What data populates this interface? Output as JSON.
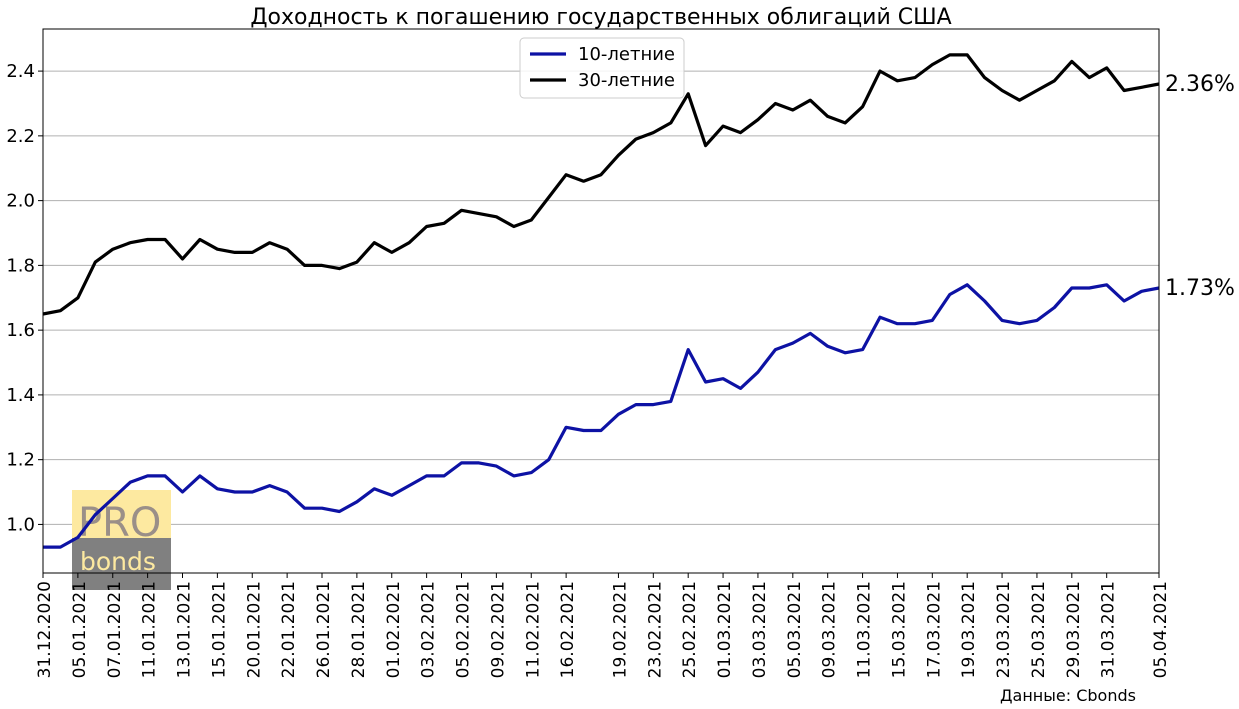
{
  "chart_data": {
    "type": "line",
    "title": "Доходность к погашению государственных облигаций США",
    "xlabel": "",
    "ylabel": "",
    "ylim": [
      0.85,
      2.53
    ],
    "yticks": [
      "1.0",
      "1.2",
      "1.4",
      "1.6",
      "1.8",
      "2.0",
      "2.2",
      "2.4"
    ],
    "grid": true,
    "legend_position": "top-center",
    "x_tick_labels": [
      "31.12.2020",
      "05.01.2021",
      "07.01.2021",
      "11.01.2021",
      "13.01.2021",
      "15.01.2021",
      "20.01.2021",
      "22.01.2021",
      "26.01.2021",
      "28.01.2021",
      "01.02.2021",
      "03.02.2021",
      "05.02.2021",
      "09.02.2021",
      "11.02.2021",
      "16.02.2021",
      "19.02.2021",
      "23.02.2021",
      "25.02.2021",
      "01.03.2021",
      "03.03.2021",
      "05.03.2021",
      "09.03.2021",
      "11.03.2021",
      "15.03.2021",
      "17.03.2021",
      "19.03.2021",
      "23.03.2021",
      "25.03.2021",
      "29.03.2021",
      "31.03.2021",
      "05.04.2021"
    ],
    "series": [
      {
        "name": "10-летние",
        "color": "#0d12a4",
        "end_label": "1.73%",
        "values": [
          0.93,
          0.93,
          0.96,
          1.03,
          1.08,
          1.13,
          1.15,
          1.15,
          1.1,
          1.15,
          1.11,
          1.1,
          1.1,
          1.12,
          1.1,
          1.05,
          1.05,
          1.04,
          1.07,
          1.11,
          1.09,
          1.12,
          1.15,
          1.15,
          1.19,
          1.19,
          1.18,
          1.15,
          1.16,
          1.2,
          1.3,
          1.29,
          1.29,
          1.34,
          1.37,
          1.37,
          1.38,
          1.54,
          1.44,
          1.45,
          1.42,
          1.47,
          1.54,
          1.56,
          1.59,
          1.55,
          1.53,
          1.54,
          1.64,
          1.62,
          1.62,
          1.63,
          1.71,
          1.74,
          1.69,
          1.63,
          1.62,
          1.63,
          1.67,
          1.73,
          1.73,
          1.74,
          1.69,
          1.72,
          1.73
        ]
      },
      {
        "name": "30-летние",
        "color": "#000000",
        "end_label": "2.36%",
        "values": [
          1.65,
          1.66,
          1.7,
          1.81,
          1.85,
          1.87,
          1.88,
          1.88,
          1.82,
          1.88,
          1.85,
          1.84,
          1.84,
          1.87,
          1.85,
          1.8,
          1.8,
          1.79,
          1.81,
          1.87,
          1.84,
          1.87,
          1.92,
          1.93,
          1.97,
          1.96,
          1.95,
          1.92,
          1.94,
          2.01,
          2.08,
          2.06,
          2.08,
          2.14,
          2.19,
          2.21,
          2.24,
          2.33,
          2.17,
          2.23,
          2.21,
          2.25,
          2.3,
          2.28,
          2.31,
          2.26,
          2.24,
          2.29,
          2.4,
          2.37,
          2.38,
          2.42,
          2.45,
          2.45,
          2.38,
          2.34,
          2.31,
          2.34,
          2.37,
          2.43,
          2.38,
          2.41,
          2.34,
          2.35,
          2.36
        ]
      }
    ],
    "watermark": {
      "line1": "PRO",
      "line2": "bonds"
    },
    "source_note": "Данные: Cbonds"
  }
}
